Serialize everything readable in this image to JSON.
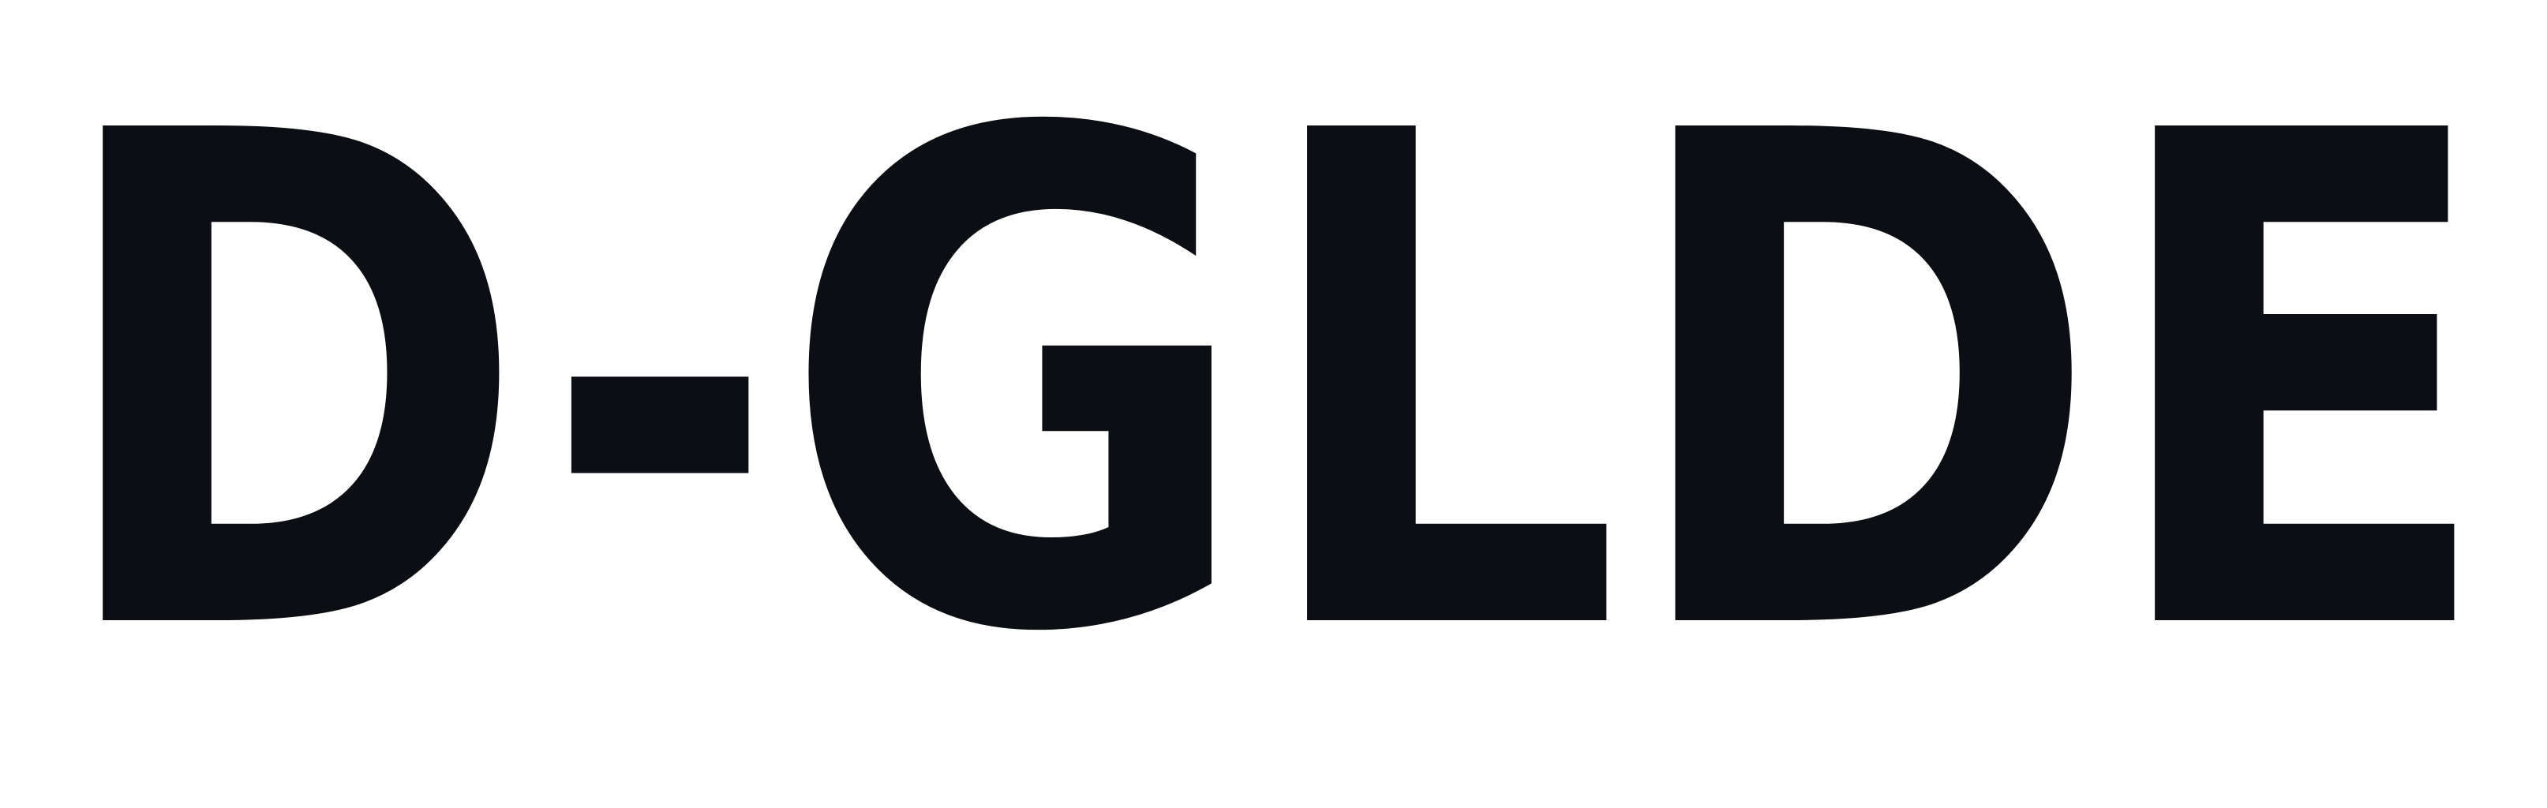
{
  "wordmark": {
    "text": "D-GLDE",
    "color": "#0b0e13",
    "background": "#ffffff"
  }
}
